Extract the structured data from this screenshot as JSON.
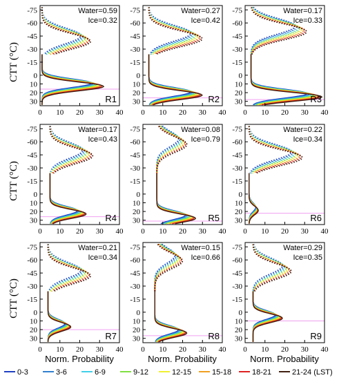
{
  "chart_data": {
    "type": "line",
    "xlabel": "Norm. Probability",
    "ylabel": "CTT (°C)",
    "xlim": [
      0,
      40
    ],
    "ylim": [
      35,
      -80
    ],
    "xticks": [
      "0",
      "10",
      "20",
      "30",
      "40"
    ],
    "yticks": [
      "-75",
      "-60",
      "-45",
      "-30",
      "-15",
      "0",
      "10",
      "20",
      "30"
    ],
    "water_label": "Water=",
    "ice_label": "Ice=",
    "legend": [
      {
        "name": "0-3",
        "color": "#1f3fc4"
      },
      {
        "name": "3-6",
        "color": "#2f7fd0"
      },
      {
        "name": "6-9",
        "color": "#40d0e8"
      },
      {
        "name": "9-12",
        "color": "#80e040"
      },
      {
        "name": "12-15",
        "color": "#f0f030"
      },
      {
        "name": "15-18",
        "color": "#f0a020"
      },
      {
        "name": "18-21",
        "color": "#e02020"
      },
      {
        "name": "21-24 (LST)",
        "color": "#402010"
      }
    ],
    "panels": [
      {
        "region": "R1",
        "water": "0.59",
        "ice": "0.32",
        "ice_peak_ctt": -42,
        "ice_peak_val": 23,
        "water_peak_ctt": 11,
        "water_peak_val": 29,
        "tail_val": 1
      },
      {
        "region": "R2",
        "water": "0.27",
        "ice": "0.42",
        "ice_peak_ctt": -45,
        "ice_peak_val": 27,
        "water_peak_ctt": 21,
        "water_peak_val": 27,
        "tail_val": 3
      },
      {
        "region": "R3",
        "water": "0.17",
        "ice": "0.33",
        "ice_peak_ctt": -53,
        "ice_peak_val": 28,
        "water_peak_ctt": 23,
        "water_peak_val": 35,
        "tail_val": 3
      },
      {
        "region": "R4",
        "water": "0.17",
        "ice": "0.43",
        "ice_peak_ctt": -47,
        "ice_peak_val": 24,
        "water_peak_ctt": 21,
        "water_peak_val": 21,
        "tail_val": 5
      },
      {
        "region": "R5",
        "water": "0.08",
        "ice": "0.79",
        "ice_peak_ctt": -60,
        "ice_peak_val": 20,
        "water_peak_ctt": 26,
        "water_peak_val": 24,
        "tail_val": 7
      },
      {
        "region": "R6",
        "water": "0.22",
        "ice": "0.34",
        "ice_peak_ctt": -45,
        "ice_peak_val": 26,
        "water_peak_ctt": 17,
        "water_peak_val": 6,
        "tail_val": 2
      },
      {
        "region": "R7",
        "water": "0.21",
        "ice": "0.34",
        "ice_peak_ctt": -45,
        "ice_peak_val": 23,
        "water_peak_ctt": 15,
        "water_peak_val": 14,
        "tail_val": 4
      },
      {
        "region": "R8",
        "water": "0.15",
        "ice": "0.66",
        "ice_peak_ctt": -62,
        "ice_peak_val": 18,
        "water_peak_ctt": 22,
        "water_peak_val": 20,
        "tail_val": 6
      },
      {
        "region": "R9",
        "water": "0.29",
        "ice": "0.35",
        "ice_peak_ctt": -50,
        "ice_peak_val": 21,
        "water_peak_ctt": 5,
        "water_peak_val": 17,
        "tail_val": 4
      }
    ]
  }
}
